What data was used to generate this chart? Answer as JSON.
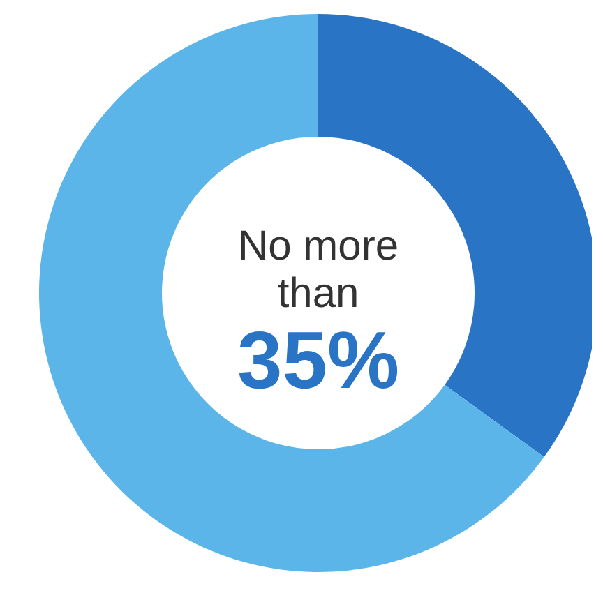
{
  "chart_data": {
    "type": "donut",
    "categories": [
      null,
      null
    ],
    "values": [
      35,
      65
    ],
    "colors": [
      "#2a74c5",
      "#5bb5e9"
    ],
    "annotations": [
      "No more than",
      "35%"
    ]
  }
}
